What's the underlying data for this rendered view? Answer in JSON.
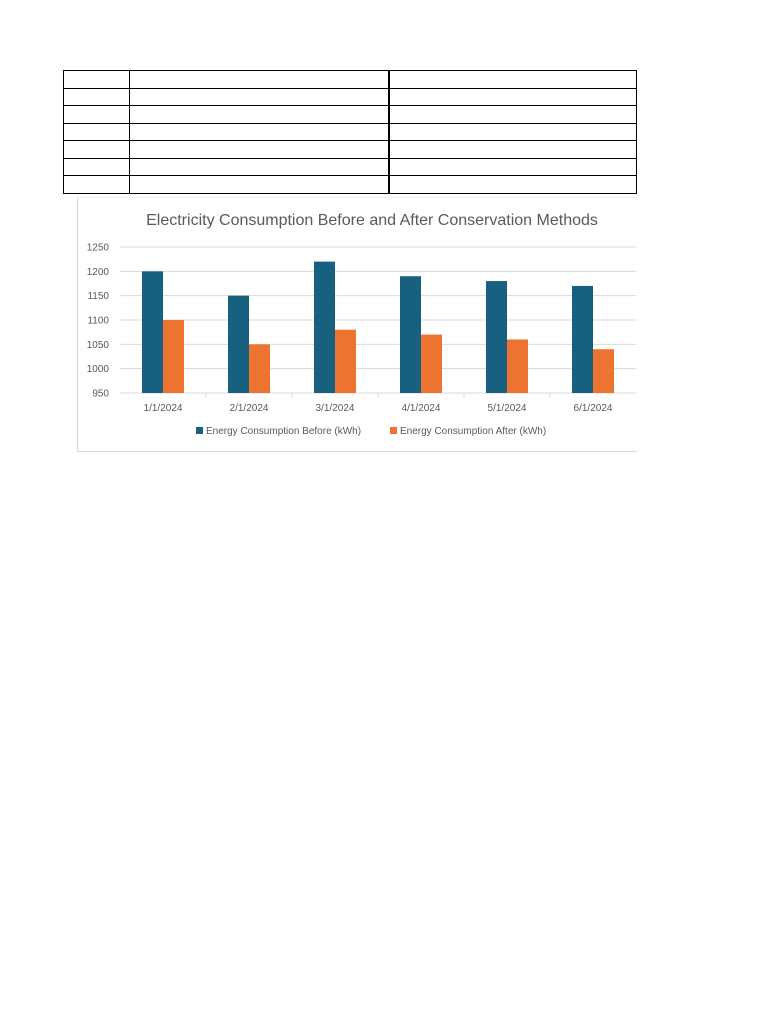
{
  "colors": {
    "before": "#17607f",
    "after": "#ed7430",
    "gridline": "#d9d9d9",
    "text": "#595959"
  },
  "chart_data": {
    "type": "bar",
    "title": "Electricity Consumption Before and After Conservation Methods",
    "xlabel": "",
    "ylabel": "",
    "categories": [
      "1/1/2024",
      "2/1/2024",
      "3/1/2024",
      "4/1/2024",
      "5/1/2024",
      "6/1/2024"
    ],
    "series": [
      {
        "name": "Energy Consumption Before (kWh)",
        "values": [
          1200,
          1150,
          1220,
          1190,
          1180,
          1170
        ]
      },
      {
        "name": "Energy Consumption After (kWh)",
        "values": [
          1100,
          1050,
          1080,
          1070,
          1060,
          1040
        ]
      }
    ],
    "ylim": [
      950,
      1250
    ],
    "yticks": [
      950,
      1000,
      1050,
      1100,
      1150,
      1200,
      1250
    ],
    "grid": true,
    "legend": "bottom"
  }
}
